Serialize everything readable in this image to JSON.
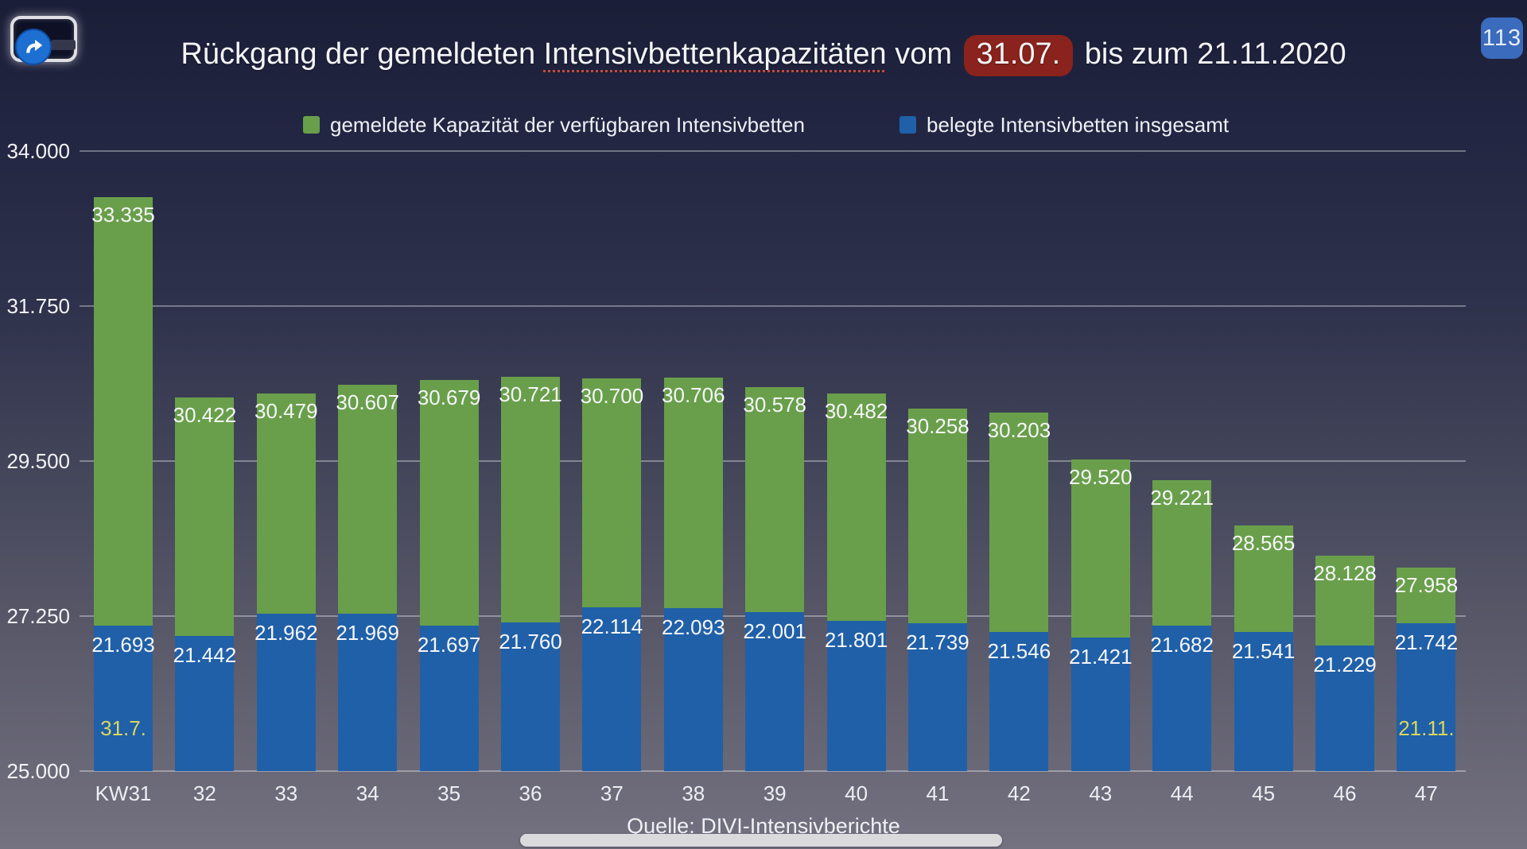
{
  "app": {
    "badge_count": "113"
  },
  "title": {
    "prefix": "Rückgang der gemeldeten ",
    "misspelled_word": "Intensivbettenkapazitäten",
    "middle": " vom ",
    "highlight": "31.07.",
    "suffix": " bis zum 21.11.2020"
  },
  "legend": [
    {
      "label": "gemeldete Kapazität der verfügbaren Intensivbetten",
      "color": "#699f4a"
    },
    {
      "label": "belegte Intensivbetten insgesamt",
      "color": "#2060a8"
    }
  ],
  "source": {
    "prefix": "Quelle: ",
    "link_text": "DIVI-Intensivberichte"
  },
  "colors": {
    "green": "#699f4a",
    "blue": "#2060a8",
    "highlight_bg": "#8a231d",
    "annotation_yellow": "#dcd65e",
    "badge_bg": "#3a6bbd",
    "grid": "rgba(255,255,255,0.35)"
  },
  "chart_data": {
    "type": "bar",
    "title": "Rückgang der gemeldeten Intensivbettenkapazitäten vom 31.07. bis zum 21.11.2020",
    "categories": [
      "KW31",
      "32",
      "33",
      "34",
      "35",
      "36",
      "37",
      "38",
      "39",
      "40",
      "41",
      "42",
      "43",
      "44",
      "45",
      "46",
      "47"
    ],
    "series": [
      {
        "name": "gemeldete Kapazität der verfügbaren Intensivbetten",
        "color": "#699f4a",
        "values": [
          33335,
          30422,
          30479,
          30607,
          30679,
          30721,
          30700,
          30706,
          30578,
          30482,
          30258,
          30203,
          29520,
          29221,
          28565,
          28128,
          27958
        ]
      },
      {
        "name": "belegte Intensivbetten insgesamt",
        "color": "#2060a8",
        "values": [
          21693,
          21442,
          21962,
          21969,
          21697,
          21760,
          22114,
          22093,
          22001,
          21801,
          21739,
          21546,
          21421,
          21682,
          21541,
          21229,
          21742
        ]
      }
    ],
    "annotations": [
      {
        "bar_index": 0,
        "text": "31.7."
      },
      {
        "bar_index": 16,
        "text": "21.11."
      }
    ],
    "y_ticks": [
      "34.000",
      "31.750",
      "29.500",
      "27.250",
      "25.000"
    ],
    "y_tick_values": [
      34000,
      31750,
      29500,
      27250,
      25000
    ],
    "ylim": [
      25000,
      34000
    ],
    "xlabel": "",
    "ylabel": "",
    "grid": true,
    "legend_position": "top",
    "value_label_format": "de-thousands-dot"
  }
}
